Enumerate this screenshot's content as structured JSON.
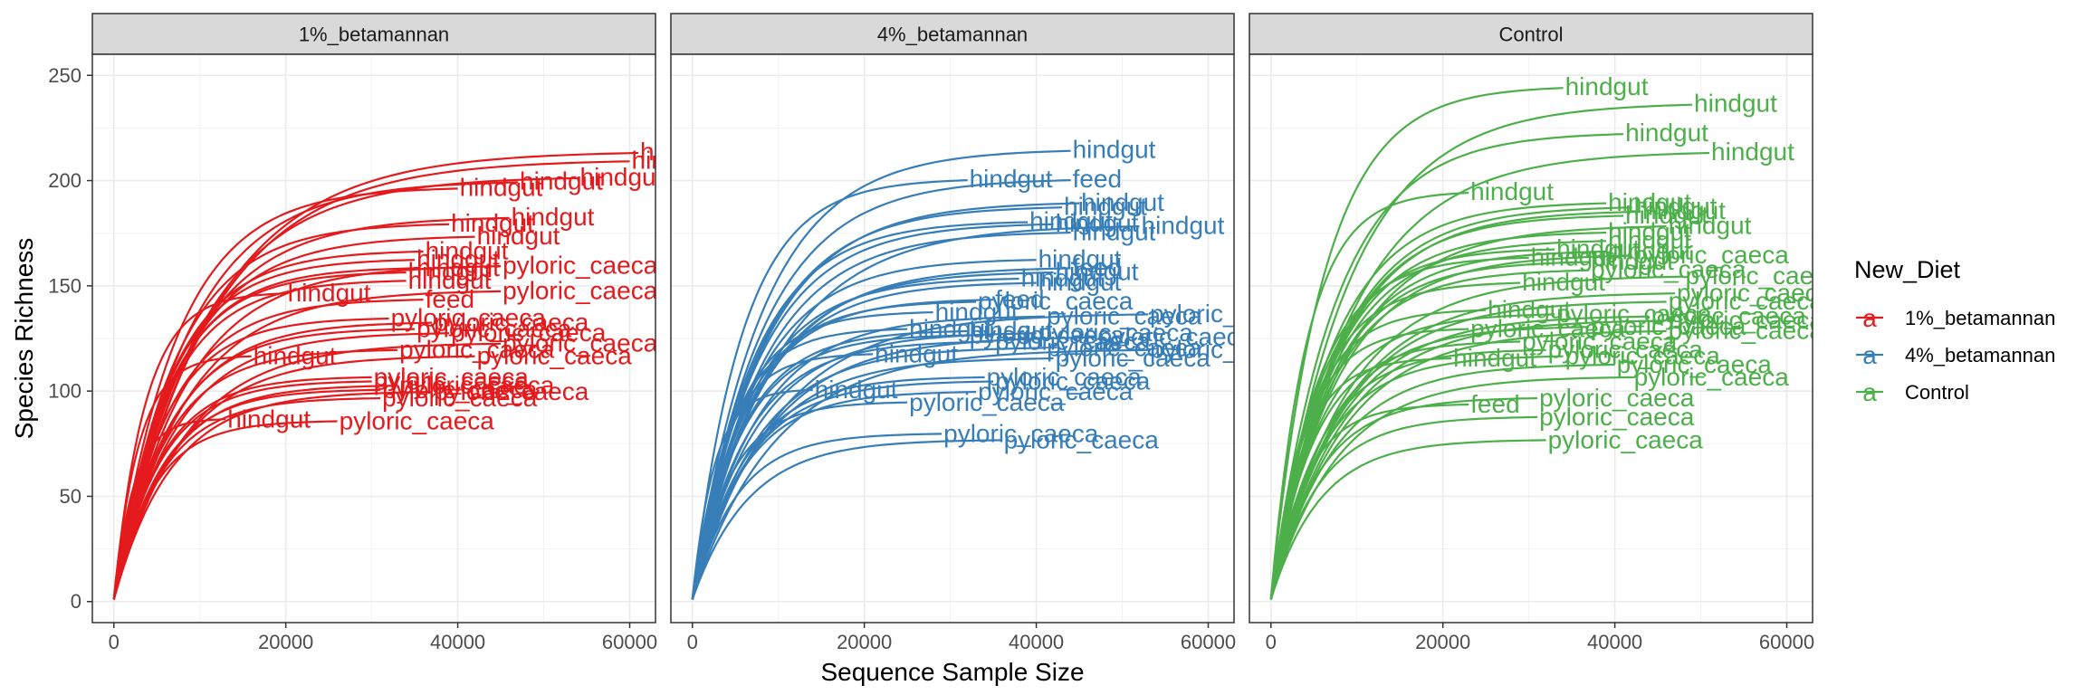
{
  "chart_data": {
    "type": "line",
    "xlabel": "Sequence Sample Size",
    "ylabel": "Species Richness",
    "xlim": [
      -2500,
      63000
    ],
    "ylim": [
      -10,
      260
    ],
    "x_ticks": [
      0,
      20000,
      40000,
      60000
    ],
    "y_ticks": [
      0,
      50,
      100,
      150,
      200,
      250
    ],
    "grid": true,
    "legend": {
      "title": "New_Diet",
      "placement": "right",
      "entries": [
        {
          "label": "1%_betamannan",
          "color": "#E41A1C"
        },
        {
          "label": "4%_betamannan",
          "color": "#377EB8"
        },
        {
          "label": "Control",
          "color": "#4DAF4A"
        }
      ]
    },
    "panels": [
      {
        "strip": "1%_betamannan",
        "color": "#E41A1C",
        "curves": [
          {
            "n": 61000,
            "s": 214,
            "label": "hindgut"
          },
          {
            "n": 60000,
            "s": 210,
            "label": "hindgut"
          },
          {
            "n": 54000,
            "s": 202,
            "label": "hindgut"
          },
          {
            "n": 47000,
            "s": 200,
            "label": "hindgut"
          },
          {
            "n": 40000,
            "s": 197,
            "label": "hindgut"
          },
          {
            "n": 46000,
            "s": 183,
            "label": "hindgut"
          },
          {
            "n": 39000,
            "s": 180,
            "label": "hindgut"
          },
          {
            "n": 42000,
            "s": 174,
            "label": "hindgut"
          },
          {
            "n": 36000,
            "s": 167,
            "label": "hindgut"
          },
          {
            "n": 35000,
            "s": 163,
            "label": "hindgut"
          },
          {
            "n": 45000,
            "s": 160,
            "label": "pyloric_caeca"
          },
          {
            "n": 35000,
            "s": 159,
            "label": "hindgut"
          },
          {
            "n": 34000,
            "s": 157,
            "label": "hindgut"
          },
          {
            "n": 34000,
            "s": 153,
            "label": "hindgut"
          },
          {
            "n": 45000,
            "s": 148,
            "label": "pyloric_caeca"
          },
          {
            "n": 20000,
            "s": 147,
            "label": "hindgut"
          },
          {
            "n": 36000,
            "s": 144,
            "label": "feed"
          },
          {
            "n": 32000,
            "s": 135,
            "label": "pyloric_caeca"
          },
          {
            "n": 37000,
            "s": 133,
            "label": "pyloric_caeca"
          },
          {
            "n": 35000,
            "s": 130,
            "label": "pyloric_caeca"
          },
          {
            "n": 39000,
            "s": 128,
            "label": "pyloric_caeca"
          },
          {
            "n": 45000,
            "s": 123,
            "label": "pyloric_caeca"
          },
          {
            "n": 33000,
            "s": 120,
            "label": "pyloric_caeca"
          },
          {
            "n": 42000,
            "s": 117,
            "label": "pyloric_caeca"
          },
          {
            "n": 16000,
            "s": 117,
            "label": "hindgut"
          },
          {
            "n": 30000,
            "s": 107,
            "label": "pyloric_caeca"
          },
          {
            "n": 30000,
            "s": 105,
            "label": "pyloric_caeca"
          },
          {
            "n": 33000,
            "s": 103,
            "label": "pyloric_caeca"
          },
          {
            "n": 31000,
            "s": 101,
            "label": "pyloric_caeca"
          },
          {
            "n": 37000,
            "s": 100,
            "label": "pyloric_caeca"
          },
          {
            "n": 31000,
            "s": 97,
            "label": "pyloric_caeca"
          },
          {
            "n": 13000,
            "s": 87,
            "label": "hindgut"
          },
          {
            "n": 26000,
            "s": 86,
            "label": "pyloric_caeca"
          }
        ]
      },
      {
        "strip": "4%_betamannan",
        "color": "#377EB8",
        "curves": [
          {
            "n": 44000,
            "s": 215,
            "label": "hindgut"
          },
          {
            "n": 32000,
            "s": 201,
            "label": "hindgut"
          },
          {
            "n": 44000,
            "s": 201,
            "label": "feed"
          },
          {
            "n": 45000,
            "s": 190,
            "label": "hindgut"
          },
          {
            "n": 43000,
            "s": 188,
            "label": "hindgut"
          },
          {
            "n": 39000,
            "s": 181,
            "label": "hindgut"
          },
          {
            "n": 42000,
            "s": 180,
            "label": "hindgut"
          },
          {
            "n": 52000,
            "s": 179,
            "label": "hindgut"
          },
          {
            "n": 44000,
            "s": 176,
            "label": "hindgut"
          },
          {
            "n": 40000,
            "s": 163,
            "label": "hindgut"
          },
          {
            "n": 44000,
            "s": 159,
            "label": "feed"
          },
          {
            "n": 42000,
            "s": 157,
            "label": "hindgut"
          },
          {
            "n": 38000,
            "s": 154,
            "label": "hindgut"
          },
          {
            "n": 40000,
            "s": 152,
            "label": "hindgut"
          },
          {
            "n": 33000,
            "s": 143,
            "label": "pyloric_caeca"
          },
          {
            "n": 35000,
            "s": 144,
            "label": "feed"
          },
          {
            "n": 28000,
            "s": 138,
            "label": "hindgut"
          },
          {
            "n": 41000,
            "s": 136,
            "label": "pyloric_caeca"
          },
          {
            "n": 53000,
            "s": 137,
            "label": "pyloric_caeca"
          },
          {
            "n": 25000,
            "s": 130,
            "label": "hindgut"
          },
          {
            "n": 32000,
            "s": 129,
            "label": "hindgut"
          },
          {
            "n": 32000,
            "s": 127,
            "label": "pyloric_caeca"
          },
          {
            "n": 40000,
            "s": 128,
            "label": "pyloric_caeca"
          },
          {
            "n": 47000,
            "s": 126,
            "label": "pyloric_caeca"
          },
          {
            "n": 35000,
            "s": 124,
            "label": "pyloric_caeca"
          },
          {
            "n": 41000,
            "s": 121,
            "label": "pyloric_caeca"
          },
          {
            "n": 53000,
            "s": 120,
            "label": "pyloric_caeca"
          },
          {
            "n": 21000,
            "s": 118,
            "label": "hindgut"
          },
          {
            "n": 42000,
            "s": 116,
            "label": "pyloric_caeca"
          },
          {
            "n": 34000,
            "s": 107,
            "label": "pyloric_caeca"
          },
          {
            "n": 35000,
            "s": 105,
            "label": "pyloric_caeca"
          },
          {
            "n": 14000,
            "s": 101,
            "label": "hindgut"
          },
          {
            "n": 33000,
            "s": 100,
            "label": "pyloric_caeca"
          },
          {
            "n": 25000,
            "s": 95,
            "label": "pyloric_caeca"
          },
          {
            "n": 29000,
            "s": 80,
            "label": "pyloric_caeca"
          },
          {
            "n": 36000,
            "s": 77,
            "label": "pyloric_caeca"
          }
        ]
      },
      {
        "strip": "Control",
        "color": "#4DAF4A",
        "curves": [
          {
            "n": 34000,
            "s": 245,
            "label": "hindgut"
          },
          {
            "n": 49000,
            "s": 237,
            "label": "hindgut"
          },
          {
            "n": 41000,
            "s": 223,
            "label": "hindgut"
          },
          {
            "n": 51000,
            "s": 214,
            "label": "hindgut"
          },
          {
            "n": 23000,
            "s": 195,
            "label": "hindgut"
          },
          {
            "n": 39000,
            "s": 190,
            "label": "hindgut"
          },
          {
            "n": 42000,
            "s": 188,
            "label": "hindgut"
          },
          {
            "n": 43000,
            "s": 186,
            "label": "hindgut"
          },
          {
            "n": 41000,
            "s": 184,
            "label": "hindgut"
          },
          {
            "n": 46000,
            "s": 179,
            "label": "hindgut"
          },
          {
            "n": 39000,
            "s": 176,
            "label": "hindgut"
          },
          {
            "n": 39000,
            "s": 172,
            "label": "hindgut"
          },
          {
            "n": 33000,
            "s": 168,
            "label": "hindgut"
          },
          {
            "n": 39000,
            "s": 167,
            "label": "hindgut"
          },
          {
            "n": 42000,
            "s": 165,
            "label": "pyloric_caeca"
          },
          {
            "n": 30000,
            "s": 164,
            "label": "hindgut"
          },
          {
            "n": 37000,
            "s": 162,
            "label": "hindgut"
          },
          {
            "n": 37000,
            "s": 158,
            "label": "pyloric_caeca"
          },
          {
            "n": 48000,
            "s": 155,
            "label": "pyloric_caeca"
          },
          {
            "n": 29000,
            "s": 152,
            "label": "hindgut"
          },
          {
            "n": 47000,
            "s": 147,
            "label": "pyloric_caeca"
          },
          {
            "n": 46000,
            "s": 143,
            "label": "pyloric_caeca"
          },
          {
            "n": 25000,
            "s": 139,
            "label": "hindgut"
          },
          {
            "n": 33000,
            "s": 137,
            "label": "pyloric_caeca"
          },
          {
            "n": 44000,
            "s": 136,
            "label": "pyloric_caeca"
          },
          {
            "n": 46000,
            "s": 134,
            "label": "pyloric_caeca"
          },
          {
            "n": 23000,
            "s": 130,
            "label": "pyloric_caeca"
          },
          {
            "n": 37000,
            "s": 131,
            "label": "pyloric_caeca"
          },
          {
            "n": 46000,
            "s": 129,
            "label": "pyloric_caeca"
          },
          {
            "n": 29000,
            "s": 124,
            "label": "pyloric_caeca"
          },
          {
            "n": 32000,
            "s": 120,
            "label": "pyloric_caeca"
          },
          {
            "n": 21000,
            "s": 116,
            "label": "hindgut"
          },
          {
            "n": 34000,
            "s": 117,
            "label": "pyloric_caeca"
          },
          {
            "n": 40000,
            "s": 113,
            "label": "pyloric_caeca"
          },
          {
            "n": 42000,
            "s": 107,
            "label": "pyloric_caeca"
          },
          {
            "n": 23000,
            "s": 94,
            "label": "feed"
          },
          {
            "n": 31000,
            "s": 97,
            "label": "pyloric_caeca"
          },
          {
            "n": 31000,
            "s": 88,
            "label": "pyloric_caeca"
          },
          {
            "n": 32000,
            "s": 77,
            "label": "pyloric_caeca"
          }
        ]
      }
    ]
  }
}
